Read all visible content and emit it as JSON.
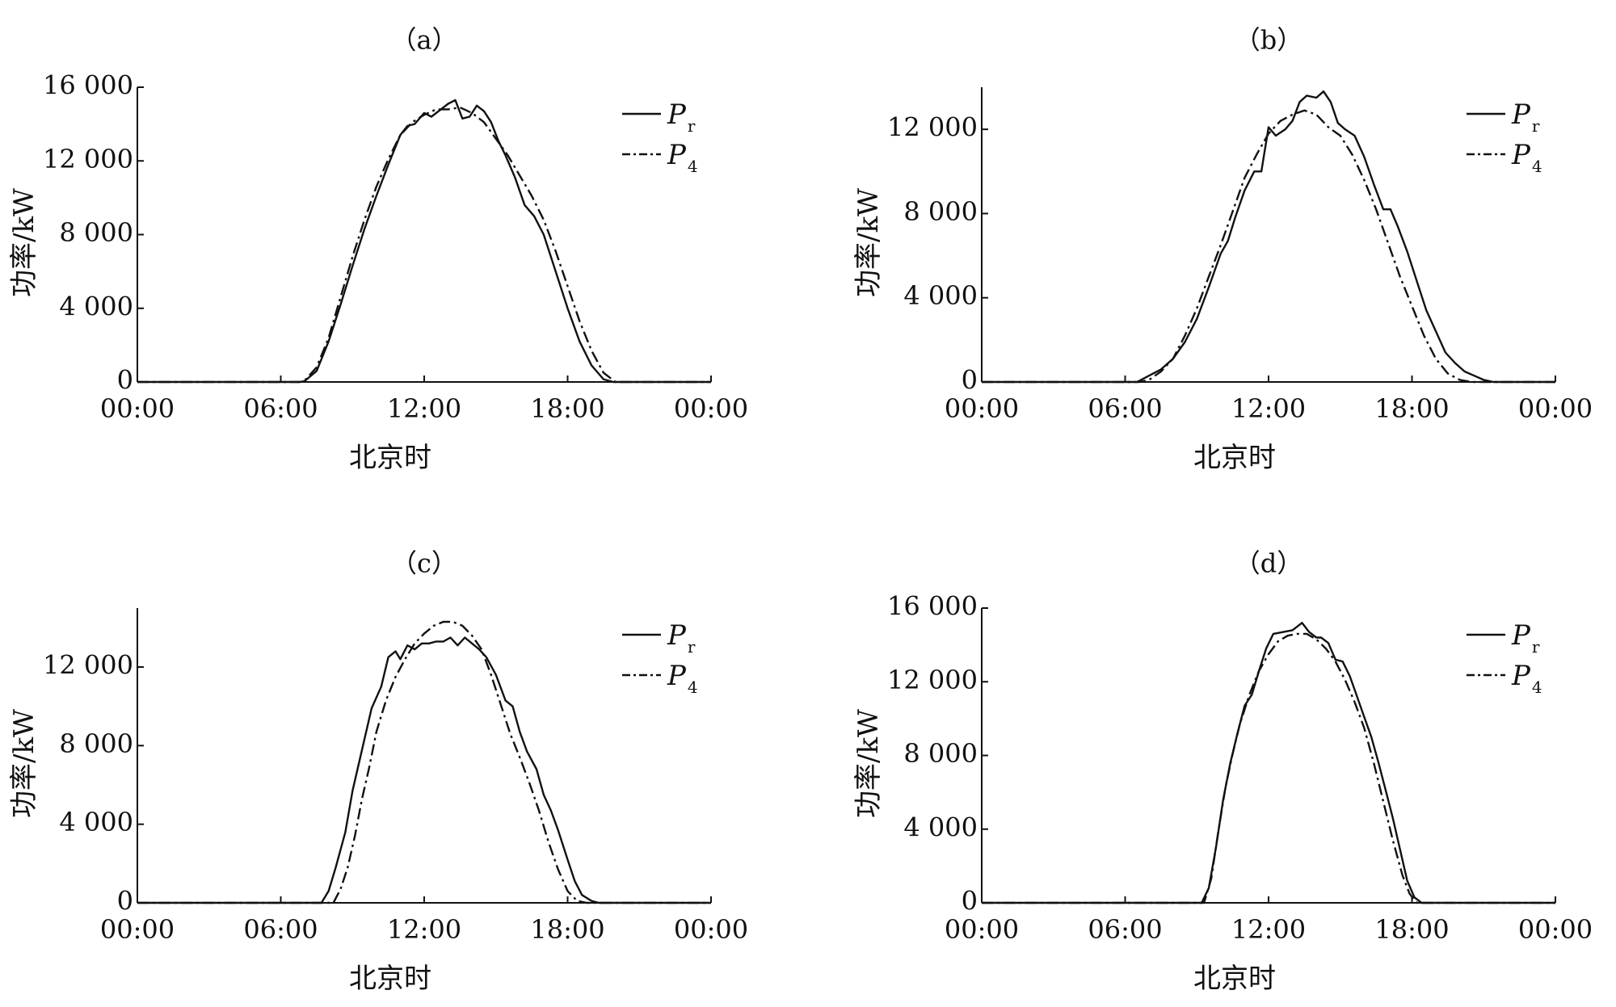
{
  "chart_data": [
    {
      "type": "line",
      "panel_label": "（a）",
      "xlabel": "北京时",
      "ylabel": "功率/kW",
      "xlim": [
        0,
        24
      ],
      "ylim": [
        0,
        16000
      ],
      "x_ticks": [
        0,
        6,
        12,
        18,
        24
      ],
      "x_tick_labels": [
        "00:00",
        "06:00",
        "12:00",
        "18:00",
        "00:00"
      ],
      "y_ticks": [
        0,
        4000,
        8000,
        12000,
        16000
      ],
      "y_tick_labels": [
        "0",
        "4 000",
        "8 000",
        "12 000",
        "16 000"
      ],
      "legend_position": "top-right",
      "series": [
        {
          "name": "P_r",
          "style": "solid",
          "x": [
            0,
            6.8,
            7.0,
            7.5,
            8.0,
            8.5,
            9.0,
            9.5,
            10.0,
            10.5,
            11.0,
            11.3,
            11.6,
            12.0,
            12.3,
            12.6,
            13.0,
            13.3,
            13.6,
            13.9,
            14.2,
            14.5,
            14.8,
            15.1,
            15.4,
            15.8,
            16.2,
            16.6,
            17.0,
            17.5,
            18.0,
            18.5,
            19.0,
            19.5,
            19.9,
            24
          ],
          "y": [
            0,
            0,
            50,
            600,
            2200,
            4200,
            6300,
            8300,
            10100,
            11800,
            13400,
            13900,
            14000,
            14600,
            14400,
            14700,
            15100,
            15300,
            14300,
            14400,
            15000,
            14700,
            14100,
            13100,
            12300,
            11100,
            9600,
            9000,
            8000,
            6000,
            4000,
            2200,
            900,
            150,
            0,
            0
          ]
        },
        {
          "name": "P_4",
          "style": "dashdot",
          "x": [
            0,
            6.8,
            7.0,
            7.5,
            8.0,
            8.5,
            9.0,
            9.5,
            10.0,
            10.5,
            11.0,
            11.5,
            12.0,
            12.5,
            13.0,
            13.5,
            14.0,
            14.5,
            15.0,
            15.5,
            16.0,
            16.5,
            17.0,
            17.5,
            18.0,
            18.5,
            19.0,
            19.5,
            20.0,
            24
          ],
          "y": [
            0,
            0,
            80,
            800,
            2400,
            4600,
            6800,
            8800,
            10600,
            12100,
            13400,
            14100,
            14500,
            14800,
            14800,
            14900,
            14600,
            14100,
            13200,
            12300,
            11200,
            10100,
            8800,
            7100,
            5200,
            3300,
            1700,
            500,
            0,
            0
          ]
        }
      ]
    },
    {
      "type": "line",
      "panel_label": "（b）",
      "xlabel": "北京时",
      "ylabel": "功率/kW",
      "xlim": [
        0,
        24
      ],
      "ylim": [
        0,
        14000
      ],
      "x_ticks": [
        0,
        6,
        12,
        18,
        24
      ],
      "x_tick_labels": [
        "00:00",
        "06:00",
        "12:00",
        "18:00",
        "00:00"
      ],
      "y_ticks": [
        0,
        4000,
        8000,
        12000
      ],
      "y_tick_labels": [
        "0",
        "4 000",
        "8 000",
        "12 000"
      ],
      "legend_position": "top-right",
      "series": [
        {
          "name": "P_r",
          "style": "solid",
          "x": [
            0,
            6.5,
            7.0,
            7.5,
            8.0,
            8.5,
            9.0,
            9.5,
            10.0,
            10.3,
            10.6,
            11.0,
            11.4,
            11.7,
            12.0,
            12.3,
            12.7,
            13.0,
            13.3,
            13.6,
            14.0,
            14.3,
            14.6,
            14.9,
            15.2,
            15.6,
            16.0,
            16.4,
            16.8,
            17.1,
            17.4,
            17.8,
            18.2,
            18.6,
            19.0,
            19.4,
            19.8,
            20.2,
            20.6,
            21.0,
            21.4,
            24
          ],
          "y": [
            0,
            0,
            300,
            600,
            1100,
            1900,
            3000,
            4500,
            6100,
            6700,
            7800,
            9100,
            10000,
            10000,
            12100,
            11700,
            12000,
            12400,
            13300,
            13600,
            13500,
            13800,
            13300,
            12300,
            12000,
            11700,
            10700,
            9400,
            8200,
            8200,
            7400,
            6200,
            4800,
            3400,
            2400,
            1400,
            900,
            500,
            300,
            100,
            0,
            0
          ]
        },
        {
          "name": "P_4",
          "style": "dashdot",
          "x": [
            0,
            6.6,
            7.0,
            7.5,
            8.0,
            8.5,
            9.0,
            9.5,
            10.0,
            10.5,
            11.0,
            11.5,
            12.0,
            12.5,
            13.0,
            13.5,
            14.0,
            14.5,
            15.0,
            15.5,
            16.0,
            16.5,
            17.0,
            17.5,
            18.0,
            18.5,
            19.0,
            19.5,
            20.0,
            20.5,
            21.0,
            24
          ],
          "y": [
            0,
            0,
            100,
            500,
            1100,
            2200,
            3500,
            5000,
            6500,
            8100,
            9700,
            10800,
            11800,
            12400,
            12700,
            12900,
            12700,
            12100,
            11700,
            10800,
            9600,
            8200,
            6600,
            5000,
            3600,
            2200,
            1100,
            400,
            100,
            0,
            0,
            0
          ]
        }
      ]
    },
    {
      "type": "line",
      "panel_label": "（c）",
      "xlabel": "北京时",
      "ylabel": "功率/kW",
      "xlim": [
        0,
        24
      ],
      "ylim": [
        0,
        15000
      ],
      "x_ticks": [
        0,
        6,
        12,
        18,
        24
      ],
      "x_tick_labels": [
        "00:00",
        "06:00",
        "12:00",
        "18:00",
        "00:00"
      ],
      "y_ticks": [
        0,
        4000,
        8000,
        12000
      ],
      "y_tick_labels": [
        "0",
        "4 000",
        "8 000",
        "12 000"
      ],
      "legend_position": "top-right",
      "series": [
        {
          "name": "P_r",
          "style": "solid",
          "x": [
            0,
            7.7,
            8.0,
            8.3,
            8.7,
            9.0,
            9.4,
            9.8,
            10.2,
            10.5,
            10.8,
            11.0,
            11.3,
            11.6,
            11.9,
            12.2,
            12.5,
            12.8,
            13.1,
            13.4,
            13.7,
            14.0,
            14.3,
            14.6,
            15.0,
            15.4,
            15.7,
            16.0,
            16.3,
            16.7,
            17.0,
            17.3,
            17.6,
            18.0,
            18.3,
            18.6,
            19.0,
            19.3,
            24
          ],
          "y": [
            0,
            0,
            600,
            1800,
            3600,
            5700,
            7800,
            9900,
            11000,
            12500,
            12800,
            12400,
            13100,
            12900,
            13200,
            13200,
            13300,
            13300,
            13500,
            13100,
            13500,
            13200,
            12900,
            12500,
            11600,
            10300,
            10000,
            8700,
            7700,
            6800,
            5500,
            4700,
            3700,
            2200,
            1100,
            400,
            100,
            0,
            0
          ]
        },
        {
          "name": "P_4",
          "style": "dashdot",
          "x": [
            0,
            8.2,
            8.5,
            8.8,
            9.1,
            9.4,
            9.7,
            10.0,
            10.4,
            10.8,
            11.2,
            11.6,
            12.0,
            12.4,
            12.8,
            13.2,
            13.6,
            14.0,
            14.4,
            14.8,
            15.2,
            15.6,
            16.0,
            16.4,
            16.8,
            17.2,
            17.6,
            18.0,
            18.4,
            18.8,
            24
          ],
          "y": [
            0,
            0,
            700,
            1800,
            3400,
            5300,
            6900,
            8700,
            10300,
            11500,
            12400,
            13200,
            13700,
            14100,
            14300,
            14300,
            14100,
            13600,
            12900,
            11600,
            10100,
            8600,
            7400,
            6100,
            4700,
            3100,
            1700,
            600,
            100,
            0,
            0
          ]
        }
      ]
    },
    {
      "type": "line",
      "panel_label": "（d）",
      "xlabel": "北京时",
      "ylabel": "功率/kW",
      "xlim": [
        0,
        24
      ],
      "ylim": [
        0,
        16000
      ],
      "x_ticks": [
        0,
        6,
        12,
        18,
        24
      ],
      "x_tick_labels": [
        "00:00",
        "06:00",
        "12:00",
        "18:00",
        "00:00"
      ],
      "y_ticks": [
        0,
        4000,
        8000,
        12000,
        16000
      ],
      "y_tick_labels": [
        "0",
        "4 000",
        "8 000",
        "12 000",
        "16 000"
      ],
      "legend_position": "top-right",
      "series": [
        {
          "name": "P_r",
          "style": "solid",
          "x": [
            0,
            9.2,
            9.5,
            9.8,
            10.1,
            10.4,
            10.7,
            11.0,
            11.3,
            11.6,
            11.9,
            12.2,
            12.6,
            13.0,
            13.4,
            13.7,
            14.0,
            14.2,
            14.5,
            14.8,
            15.1,
            15.4,
            15.7,
            16.0,
            16.3,
            16.6,
            16.9,
            17.2,
            17.5,
            17.8,
            18.1,
            18.4,
            18.7,
            24
          ],
          "y": [
            0,
            0,
            800,
            3000,
            5600,
            7600,
            9200,
            10700,
            11300,
            12600,
            13800,
            14600,
            14700,
            14800,
            15200,
            14700,
            14400,
            14400,
            14100,
            13200,
            13100,
            12300,
            11200,
            10100,
            9000,
            7600,
            6100,
            4600,
            2900,
            1200,
            300,
            0,
            0,
            0
          ]
        },
        {
          "name": "P_4",
          "style": "dashdot",
          "x": [
            0,
            9.3,
            9.6,
            9.9,
            10.2,
            10.5,
            10.8,
            11.2,
            11.6,
            12.0,
            12.4,
            12.8,
            13.2,
            13.6,
            14.0,
            14.4,
            14.8,
            15.2,
            15.6,
            16.0,
            16.4,
            16.8,
            17.2,
            17.6,
            17.9,
            18.2,
            24
          ],
          "y": [
            0,
            0,
            1300,
            3900,
            6300,
            8100,
            9700,
            11300,
            12600,
            13500,
            14200,
            14500,
            14600,
            14600,
            14300,
            13800,
            13100,
            12100,
            10900,
            9500,
            7600,
            5500,
            3400,
            1500,
            500,
            0,
            0
          ]
        }
      ]
    }
  ]
}
